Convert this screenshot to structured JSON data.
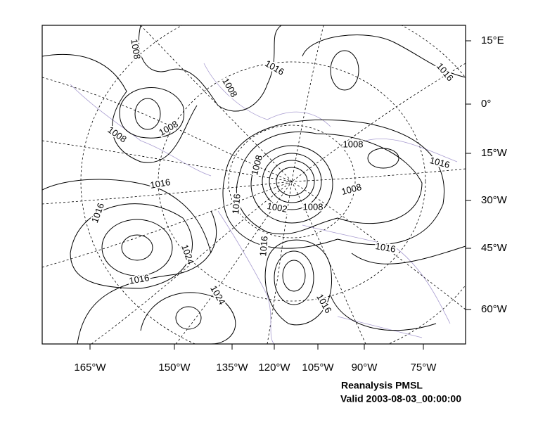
{
  "map": {
    "lon_labels": [
      "165°W",
      "150°W",
      "135°W",
      "120°W",
      "105°W",
      "90°W",
      "75°W"
    ],
    "lat_labels": [
      "15°E",
      "0°",
      "15°W",
      "30°W",
      "45°W",
      "60°W"
    ],
    "contour_labels": [
      "1008",
      "1008",
      "1016",
      "1016",
      "1008",
      "1008",
      "1008",
      "1016",
      "1008",
      "1016",
      "1008",
      "1016",
      "1016",
      "1002",
      "1008",
      "1016",
      "1024",
      "1016",
      "1016",
      "1024",
      "1016"
    ],
    "caption": [
      "Reanalysis PMSL",
      "Valid 2003-08-03_00:00:00"
    ]
  }
}
